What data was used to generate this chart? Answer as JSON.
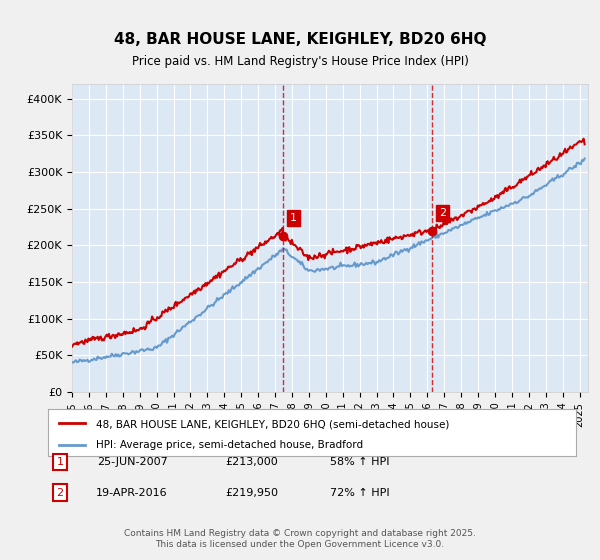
{
  "title": "48, BAR HOUSE LANE, KEIGHLEY, BD20 6HQ",
  "subtitle": "Price paid vs. HM Land Registry's House Price Index (HPI)",
  "ylim": [
    0,
    420000
  ],
  "yticks": [
    0,
    50000,
    100000,
    150000,
    200000,
    250000,
    300000,
    350000,
    400000
  ],
  "ytick_labels": [
    "£0",
    "£50K",
    "£100K",
    "£150K",
    "£200K",
    "£250K",
    "£300K",
    "£350K",
    "£400K"
  ],
  "xlim_start": 1995.0,
  "xlim_end": 2025.5,
  "sale1_date": 2007.48,
  "sale1_price": 213000,
  "sale1_label": "1",
  "sale1_text": "25-JUN-2007",
  "sale1_price_text": "£213,000",
  "sale1_hpi_text": "58% ↑ HPI",
  "sale2_date": 2016.3,
  "sale2_price": 219950,
  "sale2_label": "2",
  "sale2_text": "19-APR-2016",
  "sale2_price_text": "£219,950",
  "sale2_hpi_text": "72% ↑ HPI",
  "line1_color": "#cc0000",
  "line2_color": "#6699cc",
  "vline_color": "#cc0000",
  "fig_bg_color": "#f0f0f0",
  "plot_bg_color": "#dde8f5",
  "legend1_label": "48, BAR HOUSE LANE, KEIGHLEY, BD20 6HQ (semi-detached house)",
  "legend2_label": "HPI: Average price, semi-detached house, Bradford",
  "footer_text": "Contains HM Land Registry data © Crown copyright and database right 2025.\nThis data is licensed under the Open Government Licence v3.0."
}
